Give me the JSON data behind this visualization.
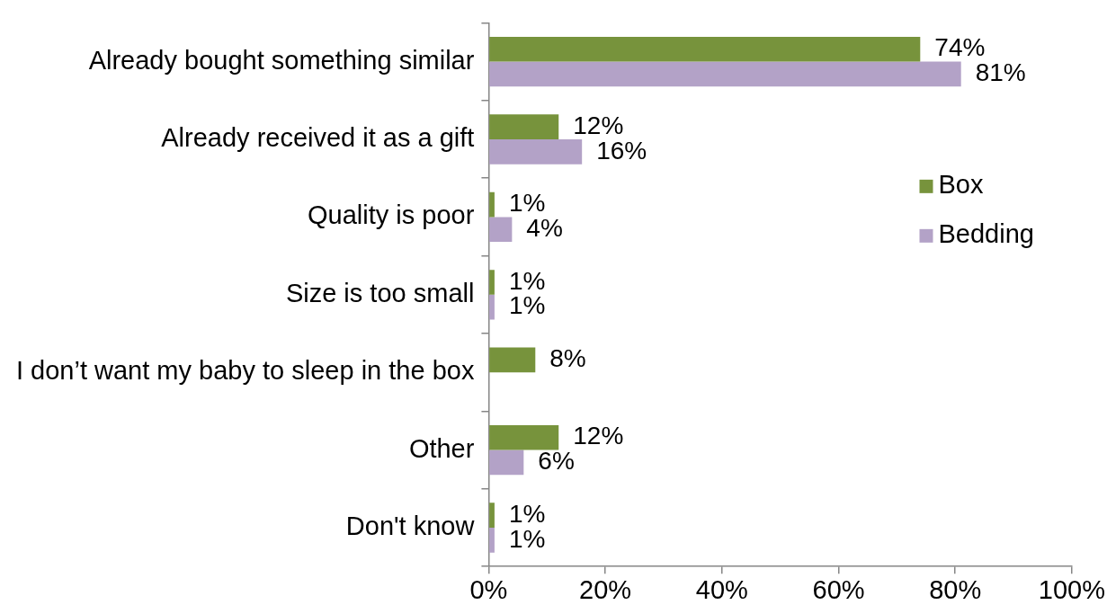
{
  "chart_data": {
    "type": "bar",
    "orientation": "horizontal",
    "categories": [
      "Already bought something similar",
      "Already received it as a gift",
      "Quality is poor",
      "Size is too small",
      "I don’t want my baby to sleep in the box",
      "Other",
      "Don't know"
    ],
    "series": [
      {
        "name": "Box",
        "color": "#77933c",
        "values": [
          74,
          12,
          1,
          1,
          8,
          12,
          1
        ],
        "value_labels": [
          "74%",
          "12%",
          "1%",
          "1%",
          "8%",
          "12%",
          "1%"
        ]
      },
      {
        "name": "Bedding",
        "color": "#b3a2c7",
        "values": [
          81,
          16,
          4,
          1,
          null,
          6,
          1
        ],
        "value_labels": [
          "81%",
          "16%",
          "4%",
          "1%",
          null,
          "6%",
          "1%"
        ]
      }
    ],
    "xlim": [
      0,
      100
    ],
    "xticks": [
      {
        "value": 0,
        "label": "0%"
      },
      {
        "value": 20,
        "label": "20%"
      },
      {
        "value": 40,
        "label": "40%"
      },
      {
        "value": 60,
        "label": "60%"
      },
      {
        "value": 80,
        "label": "80%"
      },
      {
        "value": 100,
        "label": "100%"
      }
    ],
    "grid": false,
    "legend": "right"
  }
}
